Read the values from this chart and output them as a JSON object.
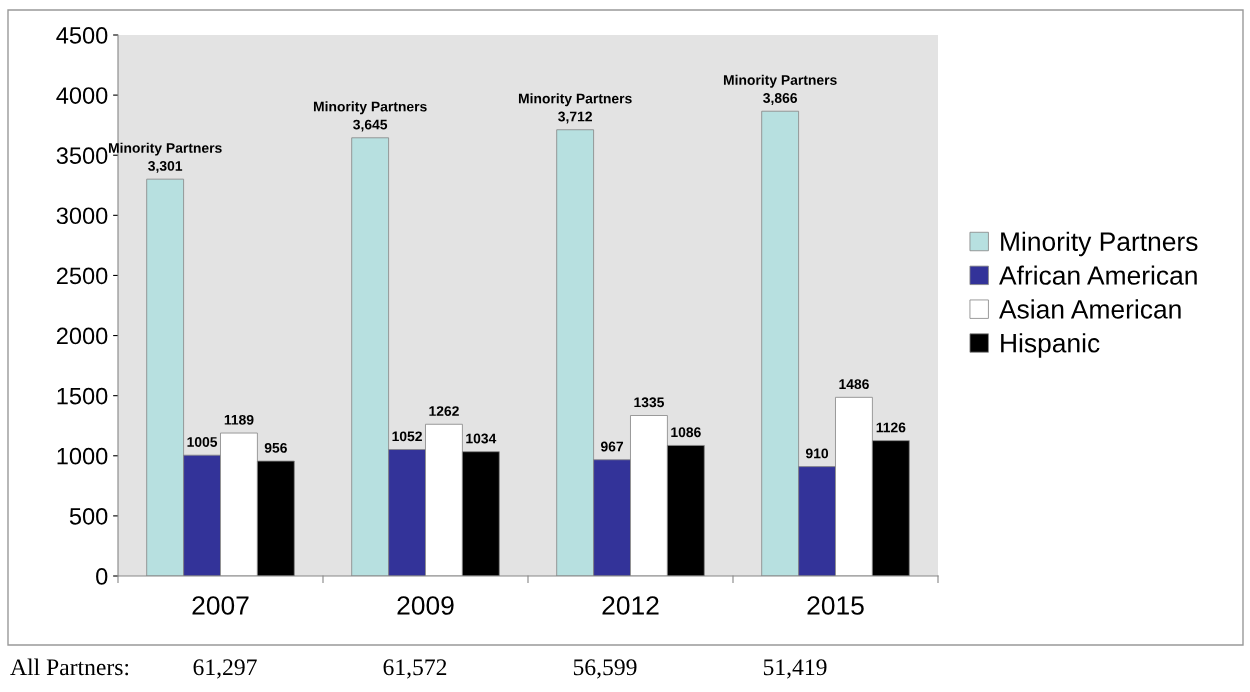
{
  "chart_data": {
    "type": "bar",
    "categories": [
      "2007",
      "2009",
      "2012",
      "2015"
    ],
    "series": [
      {
        "name": "Minority Partners",
        "color": "#b7e0e0",
        "values": [
          3301,
          3645,
          3712,
          3866
        ],
        "value_labels": [
          "Minority Partners\n3,301",
          "Minority Partners\n3,645",
          "Minority Partners\n3,712",
          "Minority Partners\n3,866"
        ]
      },
      {
        "name": "African American",
        "color": "#333399",
        "values": [
          1005,
          1052,
          967,
          910
        ],
        "value_labels": [
          "1005",
          "1052",
          "967",
          "910"
        ]
      },
      {
        "name": "Asian American",
        "color": "#ffffff",
        "values": [
          1189,
          1262,
          1335,
          1486
        ],
        "value_labels": [
          "1189",
          "1262",
          "1335",
          "1486"
        ]
      },
      {
        "name": "Hispanic",
        "color": "#000000",
        "values": [
          956,
          1034,
          1086,
          1126
        ],
        "value_labels": [
          "956",
          "1034",
          "1086",
          "1126"
        ]
      }
    ],
    "ylim": [
      0,
      4500
    ],
    "yticks": [
      0,
      500,
      1000,
      1500,
      2000,
      2500,
      3000,
      3500,
      4000,
      4500
    ],
    "grid": false,
    "legend": "right",
    "annotations": [
      "All Partners:",
      "61,297",
      "61,572",
      "56,599",
      "51,419"
    ]
  }
}
